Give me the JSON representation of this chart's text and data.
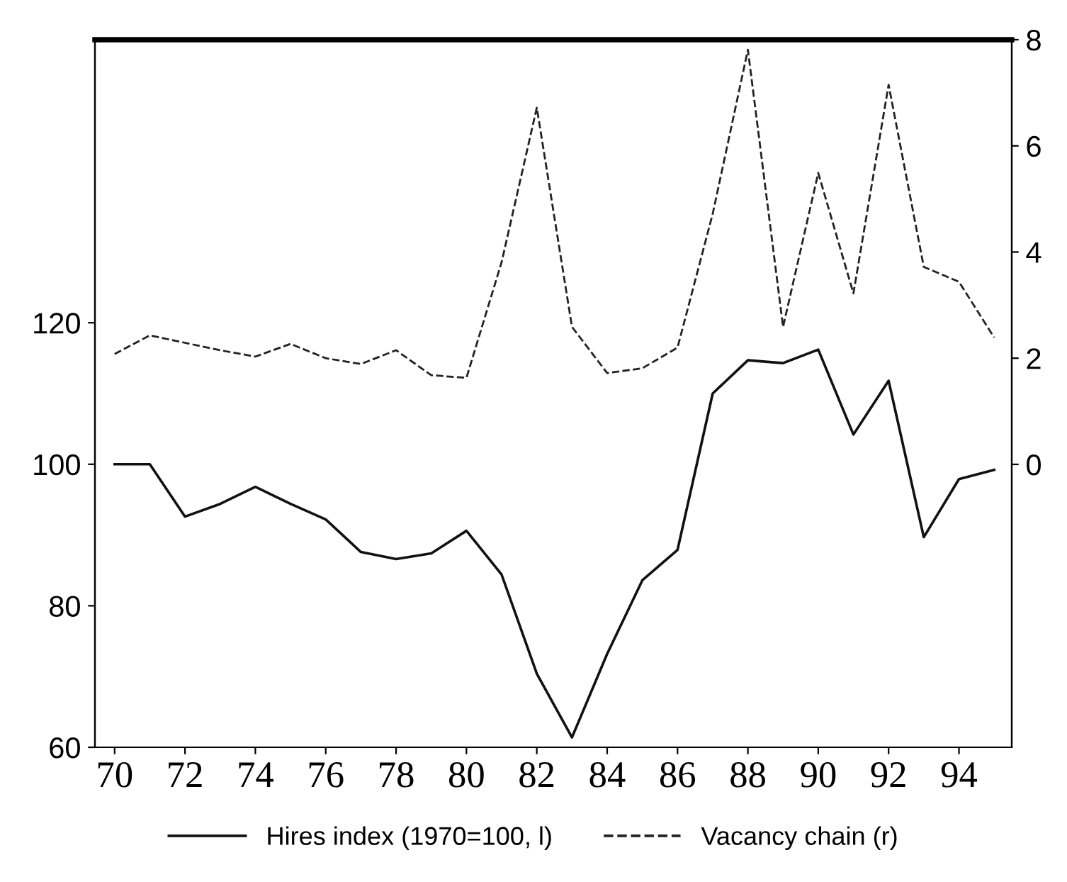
{
  "chart_data": {
    "type": "line",
    "x": [
      1970,
      1971,
      1972,
      1973,
      1974,
      1975,
      1976,
      1977,
      1978,
      1979,
      1980,
      1981,
      1982,
      1983,
      1984,
      1985,
      1986,
      1987,
      1988,
      1989,
      1990,
      1991,
      1992,
      1993,
      1994,
      1995
    ],
    "series": [
      {
        "name": "Hires index (1970=100, l)",
        "color": "#111111",
        "line_style": "solid",
        "values": [
          100,
          100,
          92.6,
          94.4,
          96.8,
          94.4,
          92.2,
          87.6,
          86.6,
          87.4,
          90.6,
          84.4,
          70.4,
          61.4,
          73.2,
          83.6,
          87.9,
          110,
          114.7,
          114.3,
          116.2,
          104.2,
          111.8,
          89.7,
          97.9,
          99.2
        ]
      },
      {
        "name": "Vacancy chain (r)",
        "color": "#222222",
        "line_style": "dashed",
        "axis": "y2",
        "values": [
          2.08,
          2.43,
          2.29,
          2.15,
          2.03,
          2.27,
          2.0,
          1.89,
          2.15,
          1.68,
          1.63,
          3.81,
          6.72,
          2.59,
          1.72,
          1.81,
          2.2,
          4.72,
          7.81,
          2.59,
          5.49,
          3.22,
          7.15,
          3.72,
          3.44,
          2.39
        ]
      }
    ],
    "xlim": [
      1969.44,
      1995.5
    ],
    "xticks": [
      {
        "value": 1970,
        "label": "70"
      },
      {
        "value": 1972,
        "label": "72"
      },
      {
        "value": 1974,
        "label": "74"
      },
      {
        "value": 1976,
        "label": "76"
      },
      {
        "value": 1978,
        "label": "78"
      },
      {
        "value": 1980,
        "label": "80"
      },
      {
        "value": 1982,
        "label": "82"
      },
      {
        "value": 1984,
        "label": "84"
      },
      {
        "value": 1986,
        "label": "86"
      },
      {
        "value": 1988,
        "label": "88"
      },
      {
        "value": 1990,
        "label": "90"
      },
      {
        "value": 1992,
        "label": "92"
      },
      {
        "value": 1994,
        "label": "94"
      }
    ],
    "ylim": [
      60,
      160
    ],
    "yticks": [
      60,
      80,
      100,
      120
    ],
    "y2lim": [
      -5.33,
      8
    ],
    "y2ticks": [
      0,
      2,
      4,
      6,
      8
    ],
    "grid": false,
    "legend": "bottom",
    "marker": "none"
  }
}
